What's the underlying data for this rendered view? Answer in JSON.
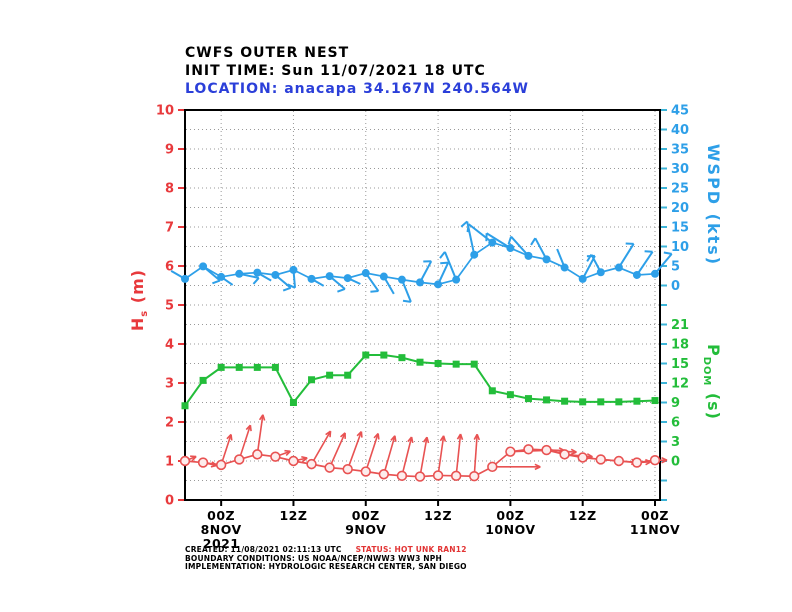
{
  "title": {
    "line1": "CWFS OUTER NEST",
    "line2": "INIT TIME: Sun 11/07/2021 18 UTC",
    "line3": "LOCATION: anacapa 34.167N 240.564W"
  },
  "footer": {
    "created": "CREATED: 11/08/2021 02:11:13 UTC",
    "status": "STATUS: HOT UNK RAN12",
    "line2": "BOUNDARY CONDITIONS: US NOAA/NCEP/NWW3 WW3 NPH",
    "line3": "IMPLEMENTATION: HYDROLOGIC RESEARCH CENTER, SAN DIEGO"
  },
  "colors": {
    "hs_axis": "#e8393c",
    "hs_series": "#e85252",
    "wspd": "#2d9fe8",
    "pdom": "#23bd3a",
    "right_ticks": "#3cb4d8",
    "grid": "#999999",
    "frame": "#000000",
    "location_text": "#2b3fd9",
    "status_text": "#e23333"
  },
  "chart_data": {
    "type": "line",
    "title": "CWFS OUTER NEST",
    "subtitle": "INIT TIME: Sun 11/07/2021 18 UTC",
    "location": "anacapa 34.167N 240.564W",
    "grid": true,
    "x_axis": {
      "description": "time, 3-hourly points from 18Z 7 NOV to 00Z 11 NOV 2021",
      "hours_total": 78,
      "step_hours": 3,
      "ticks": [
        {
          "hour": 6,
          "lines": [
            "00Z",
            "8NOV",
            "2021"
          ]
        },
        {
          "hour": 18,
          "lines": [
            "12Z"
          ]
        },
        {
          "hour": 30,
          "lines": [
            "00Z",
            "9NOV"
          ]
        },
        {
          "hour": 42,
          "lines": [
            "12Z"
          ]
        },
        {
          "hour": 54,
          "lines": [
            "00Z",
            "10NOV"
          ]
        },
        {
          "hour": 66,
          "lines": [
            "12Z"
          ]
        },
        {
          "hour": 78,
          "lines": [
            "00Z",
            "11NOV"
          ]
        }
      ]
    },
    "axes": {
      "hs": {
        "label_main": "H",
        "label_sub": "s",
        "label_unit": " (m)",
        "min": 0,
        "max": 10,
        "tick_step": 1,
        "tick_labels": [
          "0",
          "1",
          "2",
          "3",
          "4",
          "5",
          "6",
          "7",
          "8",
          "9",
          "10"
        ],
        "side": "left",
        "color": "#e8393c"
      },
      "wspd": {
        "label": "WSPD (kts)",
        "min": 0,
        "max": 45,
        "tick_step": 5,
        "tick_labels": [
          "45",
          "40",
          "35",
          "30",
          "25",
          "20",
          "15",
          "10",
          "5",
          "0"
        ],
        "side": "right-top",
        "color": "#2d9fe8"
      },
      "pdom": {
        "label_main": "P",
        "label_sub": "DOM",
        "label_unit": " (s)",
        "min": 0,
        "max": 21,
        "tick_step": 3,
        "tick_labels": [
          "21",
          "18",
          "15",
          "12",
          "9",
          "6",
          "3",
          "0"
        ],
        "side": "right-bottom",
        "color": "#23bd3a"
      }
    },
    "series": [
      {
        "name": "dominant-wave-period",
        "axis": "pdom",
        "color": "#23bd3a",
        "marker": "square",
        "values": [
          8.5,
          12.4,
          14.4,
          14.4,
          14.4,
          14.4,
          9.0,
          12.5,
          13.2,
          13.2,
          16.3,
          16.3,
          15.9,
          15.2,
          15.0,
          14.9,
          14.9,
          10.8,
          10.2,
          9.6,
          9.4,
          9.2,
          9.1,
          9.1,
          9.1,
          9.2,
          9.3
        ]
      },
      {
        "name": "significant-wave-height",
        "axis": "hs",
        "color": "#e85252",
        "marker": "open-circle",
        "values": [
          1.0,
          0.96,
          0.9,
          1.04,
          1.17,
          1.11,
          1.0,
          0.92,
          0.83,
          0.79,
          0.73,
          0.66,
          0.62,
          0.6,
          0.63,
          0.62,
          0.61,
          0.85,
          1.24,
          1.3,
          1.28,
          1.17,
          1.09,
          1.04,
          1.0,
          0.96,
          1.02
        ],
        "arrow_angles": [
          22,
          -12,
          72,
          72,
          82,
          20,
          12,
          60,
          66,
          70,
          72,
          74,
          76,
          80,
          82,
          84,
          86,
          0,
          2,
          -2,
          -4,
          -5,
          -6,
          -5,
          -4,
          3,
          0
        ],
        "arrow_lengths": [
          12,
          14,
          32,
          36,
          40,
          16,
          14,
          38,
          38,
          40,
          40,
          40,
          40,
          40,
          40,
          42,
          42,
          48,
          42,
          36,
          30,
          28,
          24,
          22,
          18,
          14,
          12
        ]
      },
      {
        "name": "wind-speed",
        "axis": "wspd",
        "color": "#2d9fe8",
        "marker": "dot",
        "values": [
          1.7,
          4.9,
          2.2,
          3.0,
          3.3,
          2.7,
          4.0,
          1.7,
          2.4,
          1.9,
          3.2,
          2.3,
          1.5,
          0.8,
          0.3,
          1.5,
          7.9,
          11.0,
          9.6,
          7.6,
          6.7,
          4.6,
          1.7,
          3.4,
          4.6,
          2.7,
          3.0
        ],
        "barb_angles": [
          150,
          -40,
          -35,
          -12,
          -30,
          -40,
          -85,
          -30,
          -40,
          -25,
          -55,
          -60,
          -68,
          62,
          65,
          112,
          102,
          142,
          148,
          132,
          118,
          112,
          62,
          118,
          58,
          56,
          50
        ],
        "barb_lengths": [
          16,
          22,
          14,
          20,
          16,
          20,
          18,
          14,
          20,
          14,
          22,
          20,
          24,
          24,
          24,
          30,
          34,
          30,
          28,
          26,
          24,
          20,
          26,
          20,
          28,
          28,
          26
        ],
        "barb_ticks": [
          0,
          1,
          0,
          1,
          0,
          1,
          1,
          0,
          1,
          0,
          1,
          0,
          1,
          1,
          1,
          1,
          1,
          1,
          1,
          1,
          1,
          0,
          1,
          1,
          1,
          1,
          1
        ]
      }
    ]
  }
}
